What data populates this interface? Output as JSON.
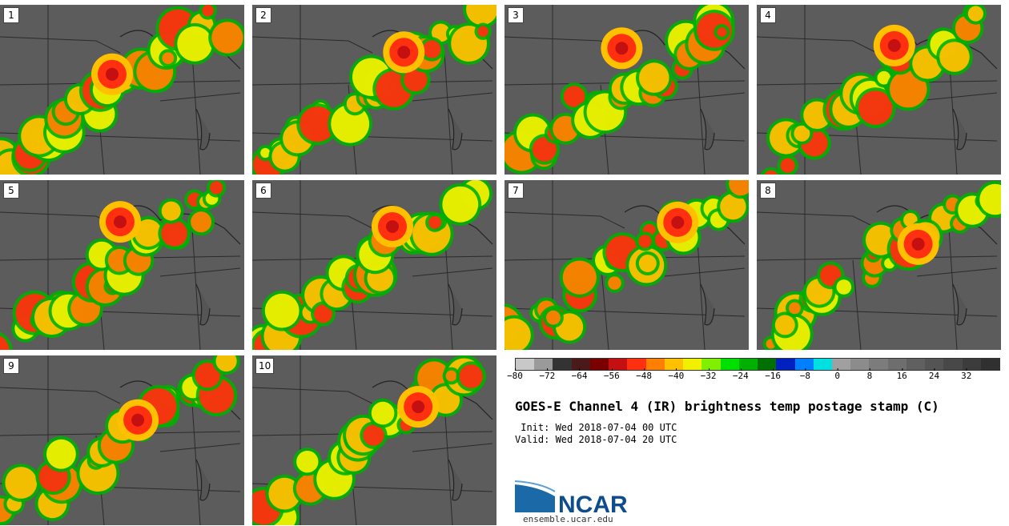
{
  "panels": [
    {
      "label": "1"
    },
    {
      "label": "2"
    },
    {
      "label": "3"
    },
    {
      "label": "4"
    },
    {
      "label": "5"
    },
    {
      "label": "6"
    },
    {
      "label": "7"
    },
    {
      "label": "8"
    },
    {
      "label": "9"
    },
    {
      "label": "10"
    }
  ],
  "colorbar": {
    "colors": [
      "#c8c8c8",
      "#9a9a9a",
      "#333333",
      "#4a1a1a",
      "#7a0000",
      "#c41010",
      "#ff3010",
      "#ff8000",
      "#ffc000",
      "#f0f000",
      "#80f000",
      "#00e000",
      "#00b000",
      "#007000",
      "#0020c0",
      "#0080ff",
      "#00e0e0",
      "#a0a0a0",
      "#8c8c8c",
      "#7c7c7c",
      "#6e6e6e",
      "#606060",
      "#545454",
      "#484848",
      "#3c3c3c",
      "#303030"
    ],
    "tick_labels": [
      "−80",
      "−72",
      "−64",
      "−56",
      "−48",
      "−40",
      "−32",
      "−24",
      "−16",
      "−8",
      "0",
      "8",
      "16",
      "24",
      "32"
    ],
    "range": [
      -80,
      40
    ]
  },
  "title": "GOES-E Channel 4 (IR) brightness temp postage stamp (C)",
  "init_text": " Init: Wed 2018-07-04 00 UTC",
  "valid_text": "Valid: Wed 2018-07-04 20 UTC",
  "logo_text": "NCAR",
  "site": "ensemble.ucar.edu",
  "colors": {
    "logo_blue": "#1c69a8",
    "logo_text": "#0e4d8c"
  }
}
